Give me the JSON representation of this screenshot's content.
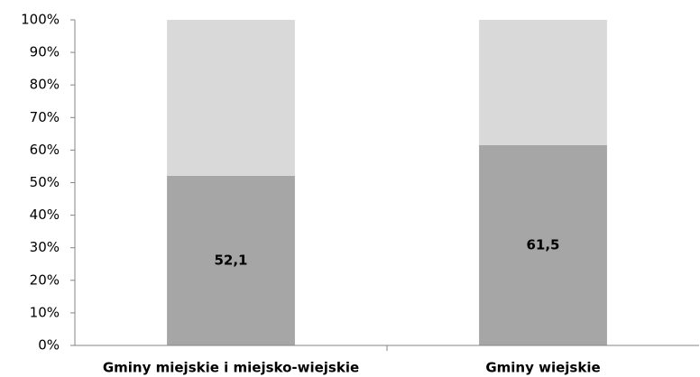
{
  "chart_data": {
    "type": "stacked-bar",
    "categories": [
      "Gminy miejskie i miejsko-wiejskie",
      "Gminy wiejskie"
    ],
    "series": [
      {
        "color": "#a6a6a6",
        "values": [
          52.1,
          61.5
        ],
        "value_labels": [
          "52,1",
          "61,5"
        ]
      },
      {
        "color": "#d9d9d9",
        "values": [
          47.9,
          38.5
        ]
      }
    ],
    "ylim": [
      0,
      100
    ],
    "yticks": [
      {
        "value": 0,
        "label": "0%"
      },
      {
        "value": 10,
        "label": "10%"
      },
      {
        "value": 20,
        "label": "20%"
      },
      {
        "value": 30,
        "label": "30%"
      },
      {
        "value": 40,
        "label": "40%"
      },
      {
        "value": 50,
        "label": "50%"
      },
      {
        "value": 60,
        "label": "60%"
      },
      {
        "value": 70,
        "label": "70%"
      },
      {
        "value": 80,
        "label": "80%"
      },
      {
        "value": 90,
        "label": "90%"
      },
      {
        "value": 100,
        "label": "100%"
      }
    ],
    "grid": false
  }
}
